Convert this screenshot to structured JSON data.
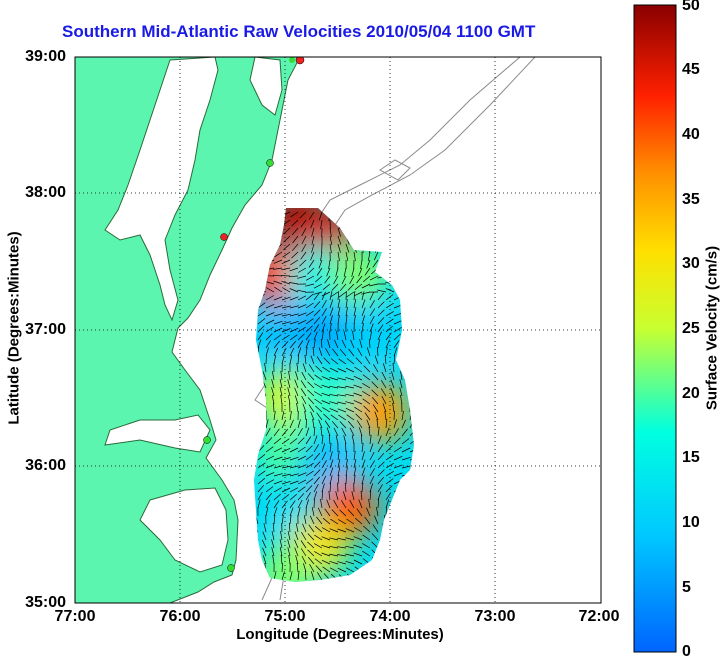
{
  "chart_data": {
    "type": "heatmap",
    "title": "Southern Mid-Atlantic Raw Velocities 2010/05/04 1100 GMT",
    "xlabel": "Longitude (Degrees:Minutes)",
    "ylabel": "Latitude (Degrees:Minutes)",
    "x_ticks": [
      "77:00",
      "76:00",
      "75:00",
      "74:00",
      "73:00",
      "72:00"
    ],
    "y_ticks": [
      "39:00",
      "38:00",
      "37:00",
      "36:00",
      "35:00"
    ],
    "xlim": [
      -77,
      -72
    ],
    "ylim": [
      35,
      39
    ],
    "grid": true,
    "colorbar": {
      "label": "Surface Velocity (cm/s)",
      "range": [
        0,
        50
      ],
      "ticks": [
        "50",
        "45",
        "40",
        "35",
        "30",
        "25",
        "20",
        "15",
        "10",
        "5",
        "0"
      ]
    },
    "velocity_field": [
      {
        "lon": -74.9,
        "lat": 37.8,
        "speed": 48
      },
      {
        "lon": -74.6,
        "lat": 37.7,
        "speed": 46
      },
      {
        "lon": -75.1,
        "lat": 37.4,
        "speed": 42
      },
      {
        "lon": -74.7,
        "lat": 37.4,
        "speed": 15
      },
      {
        "lon": -74.3,
        "lat": 37.4,
        "speed": 22
      },
      {
        "lon": -75.0,
        "lat": 37.0,
        "speed": 8
      },
      {
        "lon": -74.6,
        "lat": 37.0,
        "speed": 6
      },
      {
        "lon": -74.2,
        "lat": 37.0,
        "speed": 10
      },
      {
        "lon": -75.0,
        "lat": 36.5,
        "speed": 26
      },
      {
        "lon": -74.6,
        "lat": 36.5,
        "speed": 18
      },
      {
        "lon": -74.1,
        "lat": 36.4,
        "speed": 36
      },
      {
        "lon": -75.0,
        "lat": 36.1,
        "speed": 20
      },
      {
        "lon": -74.6,
        "lat": 36.0,
        "speed": 8
      },
      {
        "lon": -75.1,
        "lat": 35.7,
        "speed": 12
      },
      {
        "lon": -74.4,
        "lat": 35.7,
        "speed": 40
      },
      {
        "lon": -74.7,
        "lat": 35.4,
        "speed": 30
      },
      {
        "lon": -75.0,
        "lat": 35.2,
        "speed": 22
      }
    ]
  },
  "colors": {
    "land": "#5cf5b0",
    "title": "#1a1ae6",
    "coast": "#2a6a3a",
    "bathymetry": "#8a8a8a",
    "station_green": "#33dd33",
    "station_red": "#ee2222"
  }
}
